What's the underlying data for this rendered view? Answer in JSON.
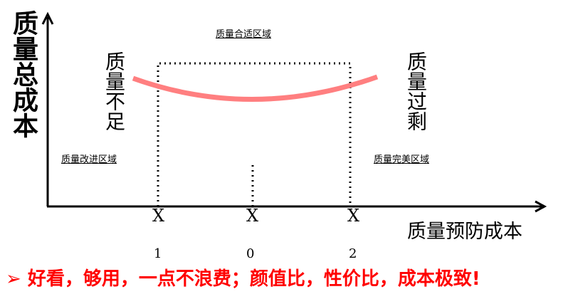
{
  "y_axis_label": "质量总成本",
  "x_axis_label": "质量预防成本",
  "zones": {
    "suitable": "质量合适区域",
    "improve": "质量改进区域",
    "perfect": "质量完美区域"
  },
  "side_labels": {
    "left": "质量不足",
    "right": "质量过剩"
  },
  "x_markers": [
    {
      "label": "X",
      "subscript": "1"
    },
    {
      "label": "X",
      "subscript": "0"
    },
    {
      "label": "X",
      "subscript": "2"
    }
  ],
  "footer": {
    "bullet": "➢",
    "text": "好看，够用，一点不浪费；颜值比，性价比，成本极致!"
  },
  "colors": {
    "curve": "#ff7f80",
    "footer": "#ff0000",
    "axes": "#000000"
  }
}
